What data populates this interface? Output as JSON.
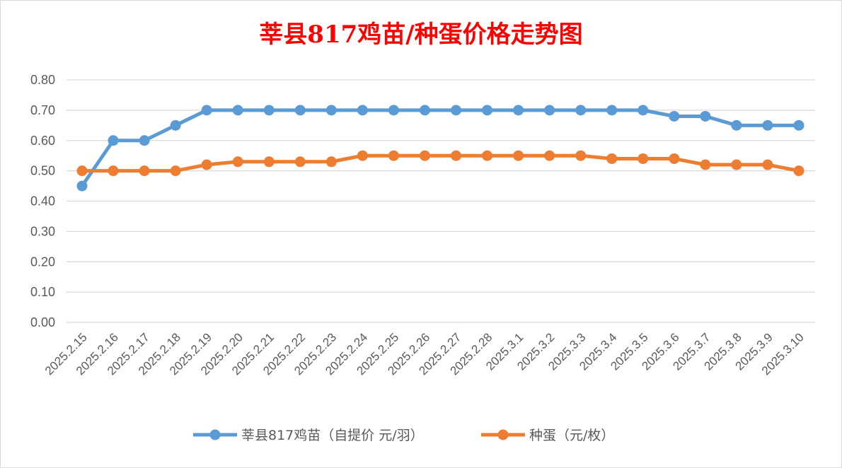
{
  "chart_data": {
    "type": "line",
    "title": "莘县817鸡苗/种蛋价格走势图",
    "xlabel": "",
    "ylabel": "",
    "ylim": [
      0,
      0.8
    ],
    "yticks": [
      "0.00",
      "0.10",
      "0.20",
      "0.30",
      "0.40",
      "0.50",
      "0.60",
      "0.70",
      "0.80"
    ],
    "grid": true,
    "legend_position": "bottom",
    "categories": [
      "2025.2.15",
      "2025.2.16",
      "2025.2.17",
      "2025.2.18",
      "2025.2.19",
      "2025.2.20",
      "2025.2.21",
      "2025.2.22",
      "2025.2.23",
      "2025.2.24",
      "2025.2.25",
      "2025.2.26",
      "2025.2.27",
      "2025.2.28",
      "2025.3.1",
      "2025.3.2",
      "2025.3.3",
      "2025.3.4",
      "2025.3.5",
      "2025.3.6",
      "2025.3.7",
      "2025.3.8",
      "2025.3.9",
      "2025.3.10"
    ],
    "series": [
      {
        "name": "莘县817鸡苗（自提价 元/羽）",
        "color": "#5b9bd5",
        "values": [
          0.45,
          0.6,
          0.6,
          0.65,
          0.7,
          0.7,
          0.7,
          0.7,
          0.7,
          0.7,
          0.7,
          0.7,
          0.7,
          0.7,
          0.7,
          0.7,
          0.7,
          0.7,
          0.7,
          0.68,
          0.68,
          0.65,
          0.65,
          0.65
        ]
      },
      {
        "name": "种蛋（元/枚）",
        "color": "#ed7d31",
        "values": [
          0.5,
          0.5,
          0.5,
          0.5,
          0.52,
          0.53,
          0.53,
          0.53,
          0.53,
          0.55,
          0.55,
          0.55,
          0.55,
          0.55,
          0.55,
          0.55,
          0.55,
          0.54,
          0.54,
          0.54,
          0.52,
          0.52,
          0.52,
          0.5
        ]
      }
    ]
  }
}
